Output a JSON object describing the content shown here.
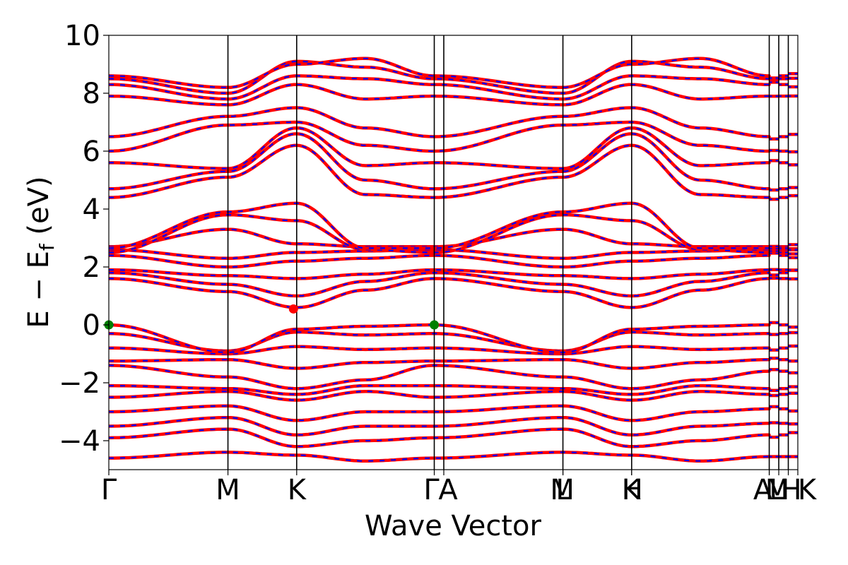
{
  "chart_data": {
    "type": "line",
    "xlabel": "Wave Vector",
    "ylabel": "E − E",
    "ylabel_subscript": "f",
    "ylabel_unit": " (eV)",
    "ylim": [
      -5,
      10
    ],
    "yticks": [
      {
        "value": -4,
        "label": "−4"
      },
      {
        "value": -2,
        "label": "−2"
      },
      {
        "value": 0,
        "label": "0"
      },
      {
        "value": 2,
        "label": "2"
      },
      {
        "value": 4,
        "label": "4"
      },
      {
        "value": 6,
        "label": "6"
      },
      {
        "value": 8,
        "label": "8"
      },
      {
        "value": 10,
        "label": "10"
      }
    ],
    "kpoints": [
      {
        "label": "Γ",
        "k": 0.0
      },
      {
        "label": "M",
        "k": 1.0
      },
      {
        "label": "K",
        "k": 1.577
      },
      {
        "label": "Γ",
        "k": 2.732
      },
      {
        "label": "A",
        "k": 2.812
      },
      {
        "label": "M",
        "k": 3.812
      },
      {
        "label": "L",
        "k": 3.812
      },
      {
        "label": "K",
        "k": 4.389
      },
      {
        "label": "H",
        "k": 4.389
      },
      {
        "label": "A",
        "k": 5.544
      },
      {
        "label": "L",
        "k": 5.544
      },
      {
        "label": "M",
        "k": 5.624
      },
      {
        "label": "H",
        "k": 5.704
      },
      {
        "label": "K",
        "k": 5.784
      }
    ],
    "grid": false,
    "line_colors": {
      "spin_up": "#ff0000",
      "spin_down": "#0000ff"
    },
    "markers": [
      {
        "name": "VBM",
        "color": "#008000",
        "k": 0.0,
        "e": 0.0
      },
      {
        "name": "VBM",
        "color": "#008000",
        "k": 2.732,
        "e": 0.0
      },
      {
        "name": "CBM",
        "color": "#ff0000",
        "k": 1.55,
        "e": 0.55
      }
    ],
    "series": [
      {
        "nodes": [
          -4.6,
          -4.4,
          -4.5,
          -4.7,
          -4.6,
          -4.4,
          -4.5,
          -4.7,
          -4.55
        ]
      },
      {
        "nodes": [
          -3.9,
          -3.6,
          -4.2,
          -4.0,
          -3.9,
          -3.6,
          -4.2,
          -4.0,
          -3.8
        ]
      },
      {
        "nodes": [
          -3.5,
          -3.2,
          -3.8,
          -3.5,
          -3.5,
          -3.2,
          -3.8,
          -3.5,
          -3.4
        ]
      },
      {
        "nodes": [
          -3.0,
          -2.8,
          -3.3,
          -3.0,
          -3.0,
          -2.8,
          -3.3,
          -3.0,
          -2.9
        ]
      },
      {
        "nodes": [
          -2.5,
          -2.3,
          -2.6,
          -2.3,
          -2.5,
          -2.3,
          -2.6,
          -2.3,
          -2.4
        ]
      },
      {
        "nodes": [
          -2.1,
          -2.2,
          -2.4,
          -2.1,
          -2.1,
          -2.2,
          -2.4,
          -2.1,
          -2.2
        ]
      },
      {
        "nodes": [
          -1.4,
          -1.8,
          -2.2,
          -1.9,
          -1.4,
          -1.8,
          -2.2,
          -1.9,
          -1.6
        ]
      },
      {
        "nodes": [
          -1.25,
          -1.2,
          -1.5,
          -1.3,
          -1.25,
          -1.2,
          -1.5,
          -1.3,
          -1.2
        ]
      },
      {
        "nodes": [
          -0.8,
          -1.0,
          -0.75,
          -0.85,
          -0.8,
          -1.0,
          -0.75,
          -0.85,
          -0.8
        ]
      },
      {
        "nodes": [
          -0.3,
          -0.9,
          -0.25,
          -0.35,
          -0.3,
          -0.9,
          -0.25,
          -0.35,
          -0.3
        ]
      },
      {
        "nodes": [
          0.0,
          -0.95,
          -0.15,
          -0.05,
          0.0,
          -0.95,
          -0.15,
          -0.05,
          0.0
        ]
      },
      {
        "nodes": [
          1.6,
          1.15,
          0.6,
          1.2,
          1.6,
          1.15,
          0.6,
          1.2,
          1.6
        ]
      },
      {
        "nodes": [
          1.8,
          1.4,
          1.0,
          1.5,
          1.8,
          1.4,
          1.0,
          1.5,
          1.8
        ]
      },
      {
        "nodes": [
          1.9,
          1.7,
          1.6,
          1.75,
          1.9,
          1.7,
          1.6,
          1.75,
          1.9
        ]
      },
      {
        "nodes": [
          2.4,
          2.0,
          2.2,
          2.3,
          2.4,
          2.0,
          2.2,
          2.3,
          2.4
        ]
      },
      {
        "nodes": [
          2.6,
          2.3,
          2.5,
          2.55,
          2.6,
          2.3,
          2.5,
          2.55,
          2.6
        ]
      },
      {
        "nodes": [
          2.7,
          3.3,
          2.8,
          2.7,
          2.7,
          3.3,
          2.8,
          2.7,
          2.7
        ]
      },
      {
        "nodes": [
          2.5,
          3.8,
          3.6,
          2.6,
          2.5,
          3.8,
          3.6,
          2.6,
          2.5
        ]
      },
      {
        "nodes": [
          2.65,
          3.9,
          4.2,
          2.65,
          2.65,
          3.9,
          4.2,
          2.65,
          2.65
        ]
      },
      {
        "nodes": [
          4.4,
          5.1,
          6.2,
          4.5,
          4.4,
          5.1,
          6.2,
          4.5,
          4.4
        ]
      },
      {
        "nodes": [
          4.7,
          5.3,
          6.6,
          5.0,
          4.7,
          5.3,
          6.6,
          5.0,
          4.7
        ]
      },
      {
        "nodes": [
          5.6,
          5.4,
          6.8,
          5.5,
          5.6,
          5.4,
          6.8,
          5.5,
          5.6
        ]
      },
      {
        "nodes": [
          6.0,
          6.9,
          7.0,
          6.2,
          6.0,
          6.9,
          7.0,
          6.2,
          6.0
        ]
      },
      {
        "nodes": [
          6.5,
          7.2,
          7.5,
          6.8,
          6.5,
          7.2,
          7.5,
          6.8,
          6.5
        ]
      },
      {
        "nodes": [
          7.9,
          7.6,
          8.3,
          7.8,
          7.9,
          7.6,
          8.3,
          7.8,
          7.9
        ]
      },
      {
        "nodes": [
          8.3,
          7.8,
          8.6,
          8.5,
          8.3,
          7.8,
          8.6,
          8.5,
          8.3
        ]
      },
      {
        "nodes": [
          8.5,
          8.0,
          9.1,
          8.9,
          8.5,
          8.0,
          9.1,
          8.9,
          8.5
        ]
      },
      {
        "nodes": [
          8.6,
          8.2,
          9.0,
          9.2,
          8.6,
          8.2,
          9.0,
          9.2,
          8.6
        ]
      }
    ],
    "node_k": [
      0.0,
      1.0,
      1.577,
      2.155,
      2.732,
      3.812,
      4.389,
      4.966,
      5.544
    ]
  }
}
